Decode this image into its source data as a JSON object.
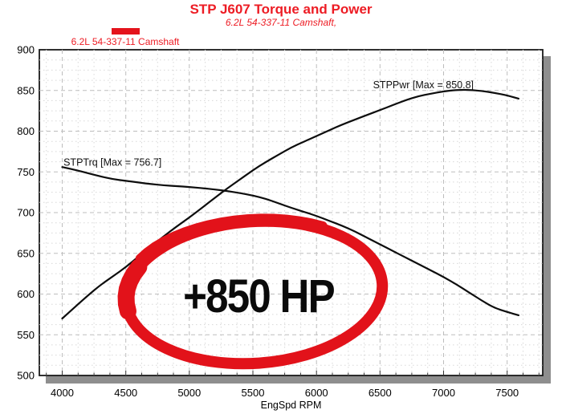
{
  "header": {
    "title": "STP J607 Torque and Power",
    "subtitle": "6.2L 54-337-11 Camshaft,",
    "title_color": "#ed1c24"
  },
  "legend": {
    "label": "6.2L 54-337-11 Camshaft",
    "swatch_color": "#e4131b",
    "text_color": "#ed1c24"
  },
  "annotation": {
    "text": "+850 HP",
    "circle_color": "#e2121a"
  },
  "chart_data": {
    "type": "line",
    "title": "STP J607 Torque and Power",
    "subtitle": "6.2L 54-337-11 Camshaft,",
    "xlabel": "EngSpd RPM",
    "ylabel": "",
    "xlim": [
      3820,
      7780
    ],
    "ylim": [
      500,
      900
    ],
    "x_ticks": [
      4000,
      4500,
      5000,
      5500,
      6000,
      6500,
      7000,
      7500
    ],
    "y_ticks": [
      500,
      550,
      600,
      650,
      700,
      750,
      800,
      850,
      900
    ],
    "x_minor_step": 125,
    "y_minor_step": 12.5,
    "grid": true,
    "legend_position": "top-left",
    "series": [
      {
        "name": "STPTrq",
        "label": "STPTrq [Max = 756.7]",
        "max": 756.7,
        "label_pos": [
          4010,
          757.5
        ],
        "color": "#0d0d0d",
        "points": [
          [
            4000,
            756
          ],
          [
            4100,
            752.5
          ],
          [
            4200,
            748.5
          ],
          [
            4300,
            744.5
          ],
          [
            4400,
            741
          ],
          [
            4500,
            739
          ],
          [
            4600,
            737
          ],
          [
            4700,
            735
          ],
          [
            4800,
            733.5
          ],
          [
            4900,
            732.5
          ],
          [
            5000,
            731.5
          ],
          [
            5100,
            730
          ],
          [
            5200,
            728.5
          ],
          [
            5300,
            726.5
          ],
          [
            5400,
            724
          ],
          [
            5500,
            721
          ],
          [
            5600,
            717
          ],
          [
            5700,
            711.5
          ],
          [
            5800,
            706
          ],
          [
            5900,
            701
          ],
          [
            6000,
            696
          ],
          [
            6100,
            690
          ],
          [
            6200,
            684
          ],
          [
            6300,
            677
          ],
          [
            6400,
            669
          ],
          [
            6500,
            661
          ],
          [
            6600,
            653
          ],
          [
            6700,
            645
          ],
          [
            6800,
            637
          ],
          [
            6900,
            629
          ],
          [
            7000,
            621
          ],
          [
            7100,
            612
          ],
          [
            7200,
            602
          ],
          [
            7300,
            592
          ],
          [
            7400,
            583
          ],
          [
            7500,
            578
          ],
          [
            7590,
            574
          ]
        ]
      },
      {
        "name": "STPPwr",
        "label": "STPPwr [Max = 850.8]",
        "max": 850.8,
        "label_pos": [
          6445,
          852.5
        ],
        "color": "#0d0d0d",
        "points": [
          [
            4000,
            570
          ],
          [
            4100,
            584
          ],
          [
            4200,
            598
          ],
          [
            4300,
            611
          ],
          [
            4400,
            622
          ],
          [
            4500,
            633
          ],
          [
            4600,
            646
          ],
          [
            4700,
            659
          ],
          [
            4800,
            671
          ],
          [
            4900,
            683
          ],
          [
            5000,
            694
          ],
          [
            5100,
            706
          ],
          [
            5200,
            718
          ],
          [
            5300,
            730
          ],
          [
            5400,
            741
          ],
          [
            5500,
            752
          ],
          [
            5600,
            762
          ],
          [
            5700,
            771
          ],
          [
            5800,
            780
          ],
          [
            5900,
            787
          ],
          [
            6000,
            794
          ],
          [
            6100,
            801
          ],
          [
            6200,
            808
          ],
          [
            6300,
            814
          ],
          [
            6400,
            820
          ],
          [
            6500,
            826
          ],
          [
            6600,
            832
          ],
          [
            6700,
            838
          ],
          [
            6800,
            843
          ],
          [
            6900,
            846
          ],
          [
            7000,
            849
          ],
          [
            7100,
            850.5
          ],
          [
            7150,
            850.8
          ],
          [
            7200,
            850.6
          ],
          [
            7300,
            849.5
          ],
          [
            7400,
            847
          ],
          [
            7500,
            844
          ],
          [
            7590,
            840
          ]
        ]
      }
    ],
    "annotations": {
      "hp_text": "+850 HP",
      "circle": {
        "cx_rpm": 5510,
        "cy_val": 602,
        "rx_rpm": 1010,
        "ry_val": 87,
        "rotation_deg": -4
      }
    }
  }
}
